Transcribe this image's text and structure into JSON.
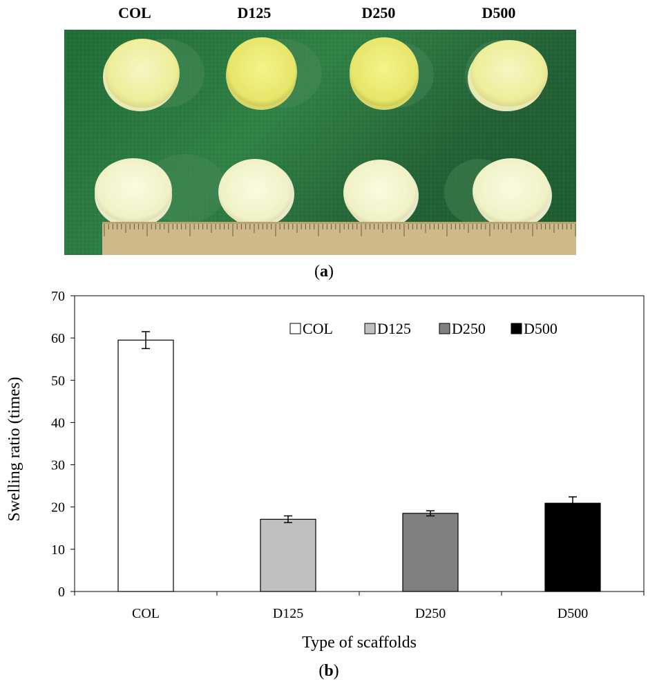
{
  "photo": {
    "sample_labels": [
      "COL",
      "D125",
      "D250",
      "D500"
    ],
    "caption_letter": "a"
  },
  "chart_caption_letter": "b",
  "chart_data": {
    "type": "bar",
    "categories": [
      "COL",
      "D125",
      "D250",
      "D500"
    ],
    "values": [
      59.5,
      17.1,
      18.5,
      20.9
    ],
    "errors": [
      2.0,
      0.8,
      0.6,
      1.5
    ],
    "bar_colors": [
      "#ffffff",
      "#c0c0c0",
      "#808080",
      "#000000"
    ],
    "legend": [
      "COL",
      "D125",
      "D250",
      "D500"
    ],
    "legend_position": "top-right",
    "xlabel": "Type of scaffolds",
    "ylabel": "Swelling ratio (times)",
    "ylim": [
      0,
      70
    ],
    "yticks": [
      0,
      10,
      20,
      30,
      40,
      50,
      60,
      70
    ],
    "grid": false
  }
}
